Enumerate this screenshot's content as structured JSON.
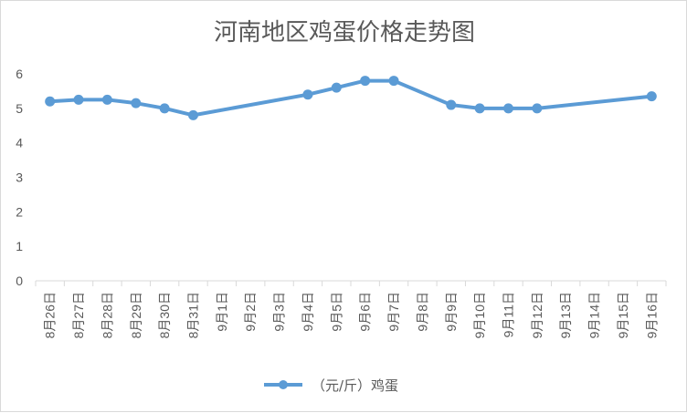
{
  "chart_data": {
    "type": "line",
    "title": "河南地区鸡蛋价格走势图",
    "categories": [
      "8月26日",
      "8月27日",
      "8月28日",
      "8月29日",
      "8月30日",
      "8月31日",
      "9月1日",
      "9月2日",
      "9月3日",
      "9月4日",
      "9月5日",
      "9月6日",
      "9月7日",
      "9月8日",
      "9月9日",
      "9月10日",
      "9月11日",
      "9月12日",
      "9月13日",
      "9月14日",
      "9月15日",
      "9月16日"
    ],
    "series": [
      {
        "name": "（元/斤）鸡蛋",
        "color": "#5b9bd5",
        "values": [
          5.2,
          5.25,
          5.25,
          5.15,
          5.0,
          4.8,
          null,
          null,
          null,
          5.4,
          5.6,
          5.8,
          5.8,
          null,
          5.1,
          5.0,
          5.0,
          5.0,
          null,
          null,
          null,
          5.35
        ]
      }
    ],
    "ylim": [
      0,
      6
    ],
    "yticks": [
      "0",
      "1",
      "2",
      "3",
      "4",
      "5",
      "6"
    ],
    "grid": false,
    "legend": "bottom",
    "gaps": "span"
  }
}
